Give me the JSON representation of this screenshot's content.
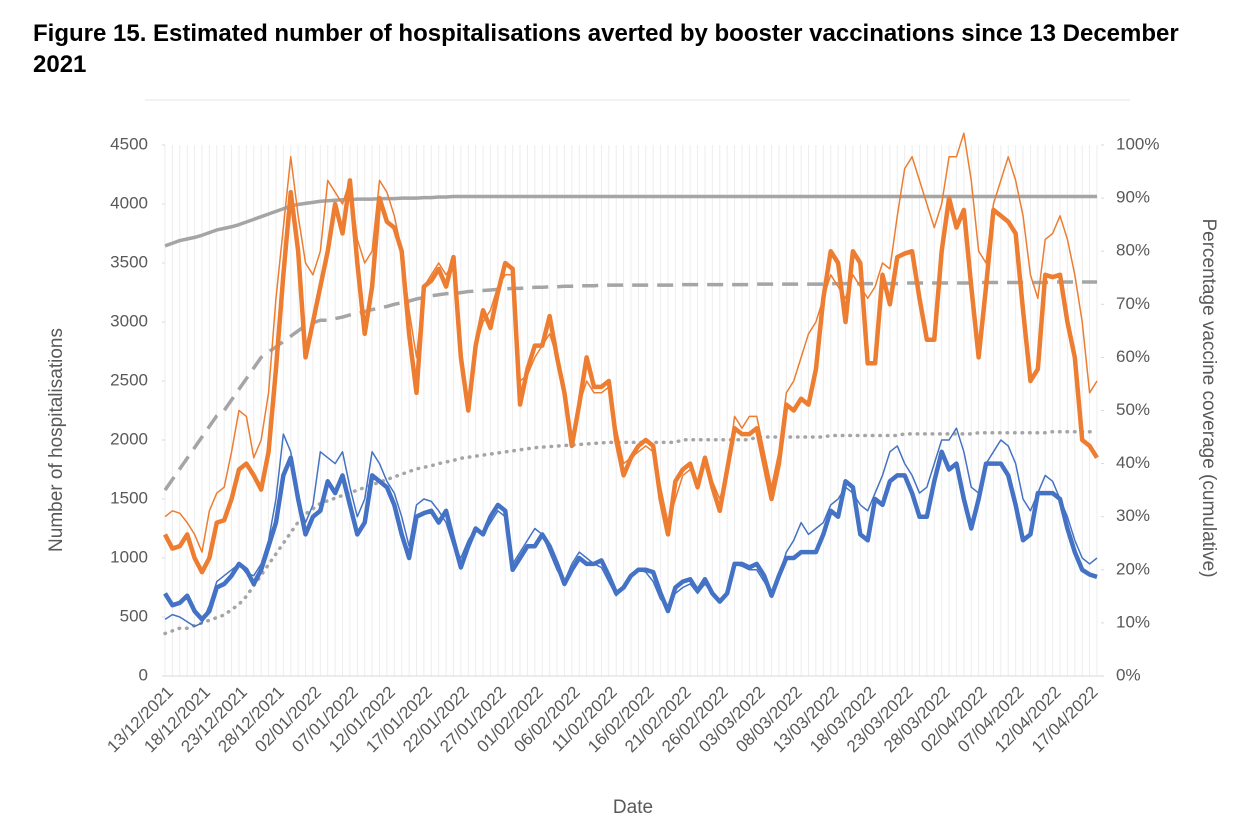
{
  "chart_data": {
    "type": "line",
    "title": "Figure 15. Estimated number of hospitalisations averted by booster vaccinations since 13 December 2021",
    "xlabel": "Date",
    "ylabel": "Number of hospitalisations",
    "y2label": "Percentage vaccine coverage (cumulative)",
    "categories": [
      "13/12/2021",
      null,
      null,
      null,
      null,
      "18/12/2021",
      null,
      null,
      null,
      null,
      "23/12/2021",
      null,
      null,
      null,
      null,
      "28/12/2021",
      null,
      null,
      null,
      null,
      "02/01/2022",
      null,
      null,
      null,
      null,
      "07/01/2022",
      null,
      null,
      null,
      null,
      "12/01/2022",
      null,
      null,
      null,
      null,
      "17/01/2022",
      null,
      null,
      null,
      null,
      "22/01/2022",
      null,
      null,
      null,
      null,
      "27/01/2022",
      null,
      null,
      null,
      null,
      "01/02/2022",
      null,
      null,
      null,
      null,
      "06/02/2022",
      null,
      null,
      null,
      null,
      "11/02/2022",
      null,
      null,
      null,
      null,
      "16/02/2022",
      null,
      null,
      null,
      null,
      "21/02/2022",
      null,
      null,
      null,
      null,
      "26/02/2022",
      null,
      null,
      null,
      null,
      "03/03/2022",
      null,
      null,
      null,
      null,
      "08/03/2022",
      null,
      null,
      null,
      null,
      "13/03/2022",
      null,
      null,
      null,
      null,
      "18/03/2022",
      null,
      null,
      null,
      null,
      "23/03/2022",
      null,
      null,
      null,
      null,
      "28/03/2022",
      null,
      null,
      null,
      null,
      "02/04/2022",
      null,
      null,
      null,
      null,
      "07/04/2022",
      null,
      null,
      null,
      null,
      "12/04/2022",
      null,
      null,
      null,
      null,
      "17/04/2022",
      null
    ],
    "ylim": [
      0,
      4500
    ],
    "yticks": [
      0,
      500,
      1000,
      1500,
      2000,
      2500,
      3000,
      3500,
      4000,
      4500
    ],
    "y2lim": [
      0,
      100
    ],
    "y2ticks": [
      {
        "value": 0,
        "label": "0%"
      },
      {
        "value": 10,
        "label": "10%"
      },
      {
        "value": 20,
        "label": "20%"
      },
      {
        "value": 30,
        "label": "30%"
      },
      {
        "value": 40,
        "label": "40%"
      },
      {
        "value": 50,
        "label": "50%"
      },
      {
        "value": 60,
        "label": "60%"
      },
      {
        "value": 70,
        "label": "70%"
      },
      {
        "value": 80,
        "label": "80%"
      },
      {
        "value": 90,
        "label": "90%"
      },
      {
        "value": 100,
        "label": "100%"
      }
    ],
    "grid": "x",
    "series": [
      {
        "color": "#a5a5a5",
        "style": "solid",
        "axis": "y2",
        "values": [
          81,
          81.5,
          82,
          82.3,
          82.6,
          83,
          83.5,
          84,
          84.3,
          84.6,
          85,
          85.5,
          86,
          86.5,
          87,
          87.5,
          88,
          88.5,
          88.8,
          89,
          89.2,
          89.4,
          89.5,
          89.6,
          89.7,
          89.7,
          89.8,
          89.8,
          89.8,
          89.9,
          89.9,
          89.9,
          90,
          90,
          90,
          90.1,
          90.1,
          90.2,
          90.2,
          90.3,
          90.3,
          90.3,
          90.3,
          90.3,
          90.3,
          90.3,
          90.3,
          90.3,
          90.3,
          90.3,
          90.3,
          90.3,
          90.3,
          90.3,
          90.3,
          90.3,
          90.3,
          90.3,
          90.3,
          90.3,
          90.3,
          90.3,
          90.3,
          90.3,
          90.3,
          90.3,
          90.3,
          90.3,
          90.3,
          90.3,
          90.3,
          90.3,
          90.3,
          90.3,
          90.3,
          90.3,
          90.3,
          90.3,
          90.3,
          90.3,
          90.3,
          90.3,
          90.3,
          90.3,
          90.3,
          90.3,
          90.3,
          90.3,
          90.3,
          90.3,
          90.3,
          90.3,
          90.3,
          90.3,
          90.3,
          90.3,
          90.3,
          90.3,
          90.3,
          90.3,
          90.3,
          90.3,
          90.3,
          90.3,
          90.3,
          90.3,
          90.3,
          90.3,
          90.3,
          90.3,
          90.3,
          90.3,
          90.3,
          90.3,
          90.3,
          90.3,
          90.3,
          90.3,
          90.3,
          90.3,
          90.3,
          90.3,
          90.3,
          90.3,
          90.3,
          90.3,
          90.3
        ]
      },
      {
        "color": "#a5a5a5",
        "style": "dashed",
        "axis": "y2",
        "values": [
          35,
          37,
          39,
          41,
          43,
          45,
          47,
          49,
          50,
          52,
          54,
          56,
          58,
          60,
          61,
          62,
          63,
          64,
          65,
          66,
          66.5,
          67,
          67,
          67.3,
          67.6,
          68,
          68.3,
          68.6,
          69,
          69.3,
          69.6,
          70,
          70.3,
          70.6,
          71,
          71.3,
          71.6,
          71.8,
          72,
          72,
          72.2,
          72.4,
          72.5,
          72.6,
          72.7,
          72.8,
          72.9,
          73,
          73,
          73.1,
          73.2,
          73.2,
          73.3,
          73.3,
          73.4,
          73.4,
          73.5,
          73.5,
          73.5,
          73.6,
          73.6,
          73.6,
          73.6,
          73.6,
          73.6,
          73.6,
          73.6,
          73.6,
          73.6,
          73.6,
          73.7,
          73.7,
          73.7,
          73.7,
          73.7,
          73.7,
          73.7,
          73.7,
          73.7,
          73.7,
          73.8,
          73.8,
          73.8,
          73.8,
          73.8,
          73.8,
          73.8,
          73.8,
          73.8,
          73.8,
          73.9,
          73.9,
          73.9,
          73.9,
          73.9,
          73.9,
          73.9,
          73.9,
          73.9,
          73.9,
          74,
          74,
          74,
          74,
          74,
          74,
          74,
          74,
          74,
          74,
          74.1,
          74.1,
          74.1,
          74.1,
          74.1,
          74.1,
          74.1,
          74.1,
          74.1,
          74.1,
          74.2,
          74.2,
          74.2,
          74.2,
          74.2,
          74.2,
          74.2
        ]
      },
      {
        "color": "#a5a5a5",
        "style": "dotted",
        "axis": "y2",
        "values": [
          8,
          8.5,
          9,
          9,
          9.5,
          10,
          10.5,
          11,
          11.5,
          12.5,
          13.5,
          15,
          17,
          19,
          21,
          23,
          25,
          27,
          29,
          30.5,
          31.5,
          32.5,
          33,
          33.5,
          34,
          34.5,
          35,
          35.5,
          36,
          36.5,
          37,
          37.5,
          38,
          38.5,
          39,
          39.3,
          39.6,
          40,
          40.3,
          40.6,
          41,
          41.2,
          41.4,
          41.6,
          41.8,
          42,
          42.2,
          42.4,
          42.6,
          42.8,
          43,
          43.1,
          43.2,
          43.3,
          43.4,
          43.5,
          43.6,
          43.7,
          43.8,
          43.9,
          44,
          44,
          44,
          44,
          44,
          44,
          44,
          44,
          44,
          44,
          44.5,
          44.5,
          44.5,
          44.5,
          44.5,
          44.5,
          44.5,
          44.5,
          44.5,
          44.5,
          45,
          45,
          45,
          45,
          45,
          45,
          45,
          45,
          45,
          45,
          45.3,
          45.3,
          45.3,
          45.3,
          45.3,
          45.3,
          45.3,
          45.3,
          45.3,
          45.3,
          45.6,
          45.6,
          45.6,
          45.6,
          45.6,
          45.6,
          45.6,
          45.6,
          45.6,
          45.6,
          45.8,
          45.8,
          45.8,
          45.8,
          45.8,
          45.8,
          45.8,
          45.8,
          45.8,
          45.8,
          46,
          46,
          46,
          46,
          46,
          46,
          46
        ]
      },
      {
        "color": "#ed7d31",
        "style": "thin",
        "values": [
          1350,
          1400,
          1380,
          1300,
          1200,
          1050,
          1400,
          1550,
          1600,
          1900,
          2250,
          2200,
          1850,
          2000,
          2400,
          3200,
          3800,
          4400,
          3900,
          3500,
          3400,
          3600,
          4200,
          4100,
          4000,
          4200,
          3700,
          3500,
          3600,
          4200,
          4100,
          3900,
          3600,
          3100,
          2700,
          3300,
          3400,
          3500,
          3400,
          3500,
          2800,
          2300,
          2800,
          3000,
          3100,
          3300,
          3400,
          3400,
          2500,
          2550,
          2700,
          2800,
          2900,
          2700,
          2400,
          2000,
          2300,
          2500,
          2400,
          2400,
          2450,
          2100,
          1800,
          1850,
          1900,
          1950,
          1900,
          1600,
          1300,
          1500,
          1700,
          1750,
          1650,
          1800,
          1650,
          1500,
          1700,
          2200,
          2100,
          2200,
          2200,
          1900,
          1600,
          1900,
          2400,
          2500,
          2700,
          2900,
          3000,
          3200,
          3400,
          3300,
          3200,
          3400,
          3300,
          3200,
          3300,
          3500,
          3450,
          3900,
          4300,
          4400,
          4200,
          4000,
          3800,
          4000,
          4400,
          4400,
          4600,
          4200,
          3600,
          3500,
          4000,
          4200,
          4400,
          4200,
          3900,
          3400,
          3200,
          3700,
          3750,
          3900,
          3700,
          3400,
          3000,
          2400,
          2500
        ]
      },
      {
        "color": "#ed7d31",
        "style": "thick",
        "values": [
          1200,
          1080,
          1100,
          1200,
          1000,
          880,
          1000,
          1300,
          1320,
          1500,
          1750,
          1800,
          1700,
          1580,
          1900,
          2600,
          3400,
          4100,
          3600,
          2700,
          3000,
          3300,
          3600,
          4000,
          3750,
          4200,
          3500,
          2900,
          3300,
          4050,
          3850,
          3800,
          3600,
          2900,
          2400,
          3300,
          3350,
          3450,
          3300,
          3550,
          2700,
          2250,
          2800,
          3100,
          2950,
          3250,
          3500,
          3450,
          2300,
          2600,
          2800,
          2800,
          3050,
          2700,
          2400,
          1950,
          2300,
          2700,
          2450,
          2450,
          2500,
          2000,
          1700,
          1850,
          1950,
          2000,
          1950,
          1500,
          1200,
          1650,
          1750,
          1800,
          1600,
          1850,
          1600,
          1400,
          1750,
          2100,
          2050,
          2050,
          2100,
          1800,
          1500,
          1800,
          2300,
          2250,
          2350,
          2300,
          2600,
          3200,
          3600,
          3500,
          3000,
          3600,
          3500,
          2650,
          2650,
          3400,
          3150,
          3550,
          3580,
          3600,
          3200,
          2850,
          2850,
          3600,
          4050,
          3800,
          3950,
          3300,
          2700,
          3300,
          3950,
          3900,
          3850,
          3750,
          3100,
          2500,
          2600,
          3400,
          3380,
          3400,
          3000,
          2700,
          2000,
          1950,
          1850
        ]
      },
      {
        "color": "#4472c4",
        "style": "thin",
        "values": [
          480,
          520,
          500,
          460,
          420,
          450,
          600,
          800,
          850,
          900,
          950,
          870,
          850,
          950,
          1150,
          1500,
          2050,
          1900,
          1500,
          1300,
          1450,
          1900,
          1850,
          1800,
          1900,
          1600,
          1350,
          1500,
          1900,
          1800,
          1650,
          1550,
          1350,
          1100,
          1450,
          1500,
          1480,
          1400,
          1300,
          1100,
          1000,
          1150,
          1250,
          1200,
          1300,
          1400,
          1350,
          950,
          1050,
          1150,
          1250,
          1200,
          1050,
          900,
          800,
          950,
          1050,
          1000,
          950,
          920,
          800,
          680,
          750,
          850,
          900,
          880,
          800,
          650,
          600,
          700,
          750,
          780,
          700,
          780,
          700,
          650,
          700,
          950,
          930,
          900,
          900,
          800,
          700,
          850,
          1050,
          1150,
          1300,
          1200,
          1250,
          1300,
          1450,
          1500,
          1600,
          1550,
          1450,
          1400,
          1550,
          1700,
          1900,
          1950,
          1800,
          1700,
          1550,
          1600,
          1800,
          2000,
          2000,
          2100,
          1900,
          1600,
          1550,
          1800,
          1900,
          2000,
          1950,
          1800,
          1500,
          1400,
          1550,
          1700,
          1650,
          1500,
          1350,
          1150,
          1000,
          950,
          1000
        ]
      },
      {
        "color": "#4472c4",
        "style": "thick",
        "values": [
          700,
          600,
          620,
          680,
          550,
          480,
          550,
          750,
          780,
          850,
          950,
          900,
          780,
          900,
          1100,
          1300,
          1700,
          1850,
          1500,
          1200,
          1350,
          1400,
          1650,
          1550,
          1700,
          1450,
          1200,
          1300,
          1700,
          1650,
          1600,
          1450,
          1200,
          1000,
          1350,
          1380,
          1400,
          1300,
          1400,
          1150,
          920,
          1100,
          1250,
          1200,
          1350,
          1450,
          1400,
          900,
          1000,
          1100,
          1100,
          1200,
          1100,
          950,
          780,
          900,
          1000,
          950,
          950,
          980,
          850,
          700,
          750,
          850,
          900,
          900,
          880,
          700,
          550,
          750,
          800,
          820,
          720,
          820,
          700,
          630,
          700,
          950,
          950,
          920,
          950,
          850,
          680,
          850,
          1000,
          1000,
          1050,
          1050,
          1050,
          1200,
          1400,
          1350,
          1650,
          1600,
          1200,
          1150,
          1500,
          1450,
          1650,
          1700,
          1700,
          1550,
          1350,
          1350,
          1650,
          1900,
          1750,
          1800,
          1500,
          1250,
          1500,
          1800,
          1800,
          1800,
          1700,
          1450,
          1150,
          1200,
          1550,
          1550,
          1550,
          1500,
          1250,
          1050,
          900,
          860,
          840
        ]
      }
    ]
  }
}
